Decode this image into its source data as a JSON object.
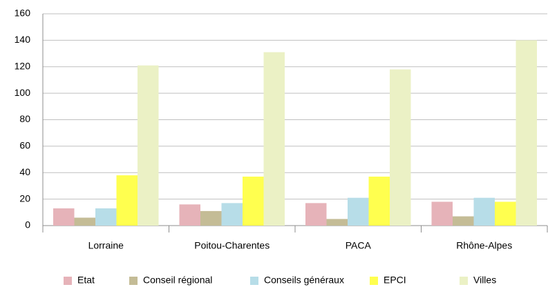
{
  "chart_data": {
    "type": "bar",
    "categories": [
      "Lorraine",
      "Poitou-Charentes",
      "PACA",
      "Rhône-Alpes"
    ],
    "series": [
      {
        "name": "Etat",
        "color": "#e6b3b9",
        "values": [
          13,
          16,
          17,
          18
        ]
      },
      {
        "name": "Conseil régional",
        "color": "#c4bc96",
        "values": [
          6,
          11,
          5,
          7
        ]
      },
      {
        "name": "Conseils généraux",
        "color": "#b7dde8",
        "values": [
          13,
          17,
          21,
          21
        ]
      },
      {
        "name": "EPCI",
        "color": "#ffff4f",
        "values": [
          38,
          37,
          37,
          18
        ]
      },
      {
        "name": "Villes",
        "color": "#ebf1c5",
        "values": [
          121,
          131,
          118,
          140
        ]
      }
    ],
    "ylim": [
      0,
      160
    ],
    "yticks": [
      0,
      20,
      40,
      60,
      80,
      100,
      120,
      140,
      160
    ],
    "grid": true,
    "legend": "bottom"
  }
}
